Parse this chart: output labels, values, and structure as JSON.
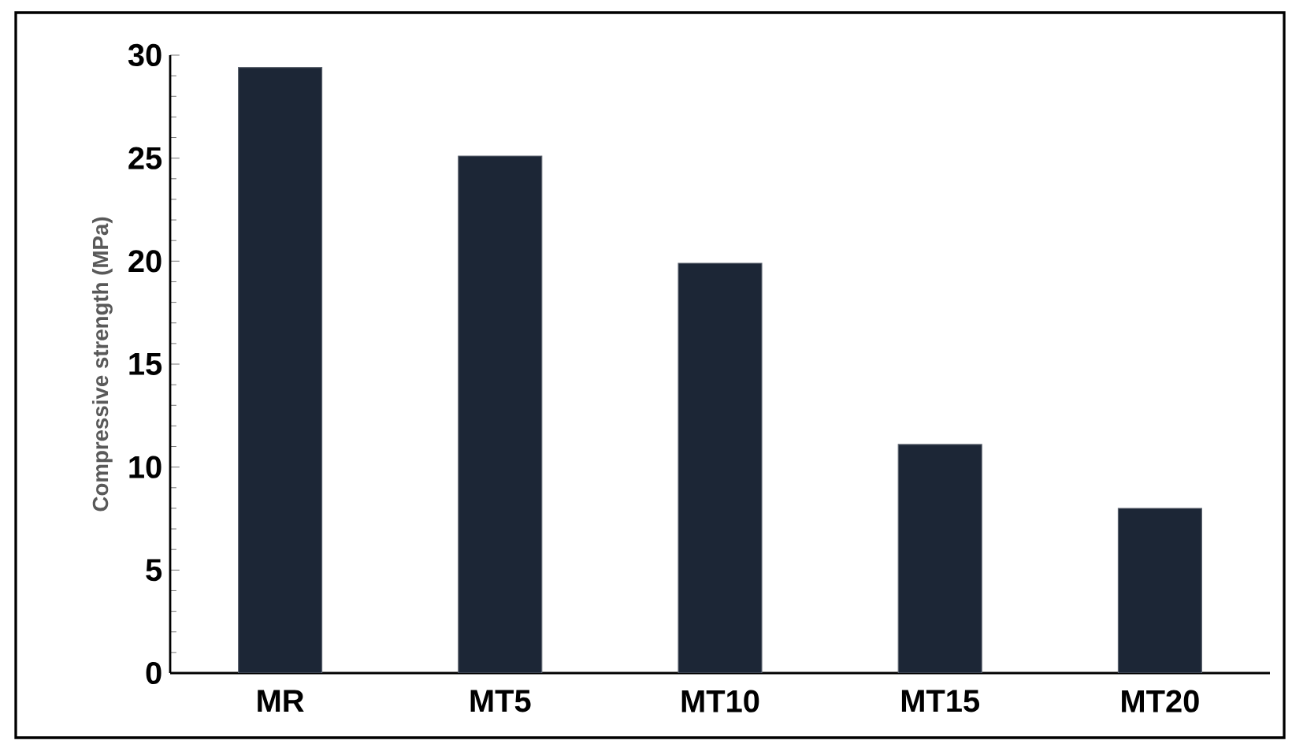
{
  "chart_data": {
    "type": "bar",
    "ylabel": "Compressive strength (MPa)",
    "categories": [
      "MR",
      "MT5",
      "MT10",
      "MT15",
      "MT20"
    ],
    "values": [
      29.4,
      25.1,
      19.9,
      11.1,
      8.0
    ],
    "color": "#1c2636",
    "ylim": [
      0,
      30
    ],
    "yticks": [
      0,
      5,
      10,
      15,
      20,
      25,
      30
    ],
    "grid": false
  }
}
